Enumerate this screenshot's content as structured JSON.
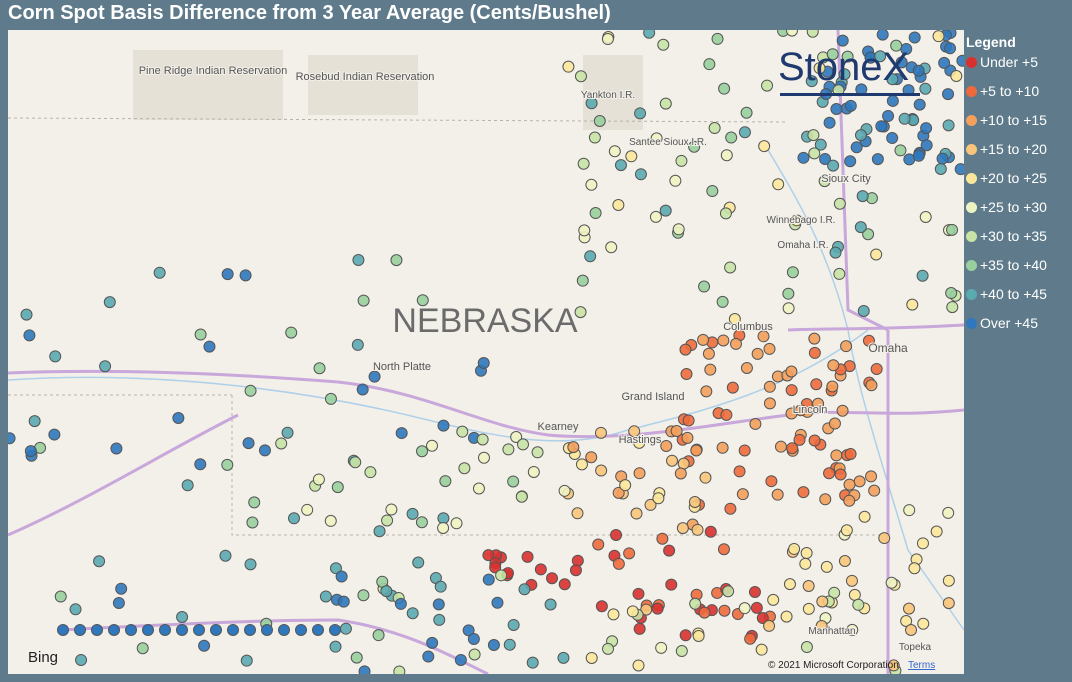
{
  "header": {
    "title": "Corn Spot Basis Difference from 3 Year Average (Cents/Bushel)"
  },
  "logo": {
    "text": "StoneX"
  },
  "legend": {
    "title": "Legend",
    "items": [
      {
        "label": "Under +5",
        "color": "#d9312f"
      },
      {
        "label": "+5 to +10",
        "color": "#ee6a3c"
      },
      {
        "label": "+10 to +15",
        "color": "#f3a05c"
      },
      {
        "label": "+15 to +20",
        "color": "#f8c57a"
      },
      {
        "label": "+20 to +25",
        "color": "#fbe79b"
      },
      {
        "label": "+25 to +30",
        "color": "#eef3c2"
      },
      {
        "label": "+30 to +35",
        "color": "#c7e3a5"
      },
      {
        "label": "+35 to +40",
        "color": "#98cf9c"
      },
      {
        "label": "+40 to +45",
        "color": "#5aaab0"
      },
      {
        "label": "Over +45",
        "color": "#2f78bd"
      }
    ]
  },
  "map": {
    "labels": [
      "Pine Ridge Indian Reservation",
      "Rosebud Indian Reservation",
      "Yankton I.R.",
      "Santee Sioux I.R.",
      "Sioux City",
      "Winnebago I.R.",
      "Omaha I.R.",
      "NEBRASKA",
      "North Platte",
      "Columbus",
      "Omaha",
      "Grand Island",
      "Kearney",
      "Hastings",
      "Lincoln",
      "Manhattan",
      "Topeka"
    ]
  },
  "footer": {
    "provider": "Bing",
    "copyright": "© 2021 Microsoft Corporation",
    "terms": "Terms"
  }
}
